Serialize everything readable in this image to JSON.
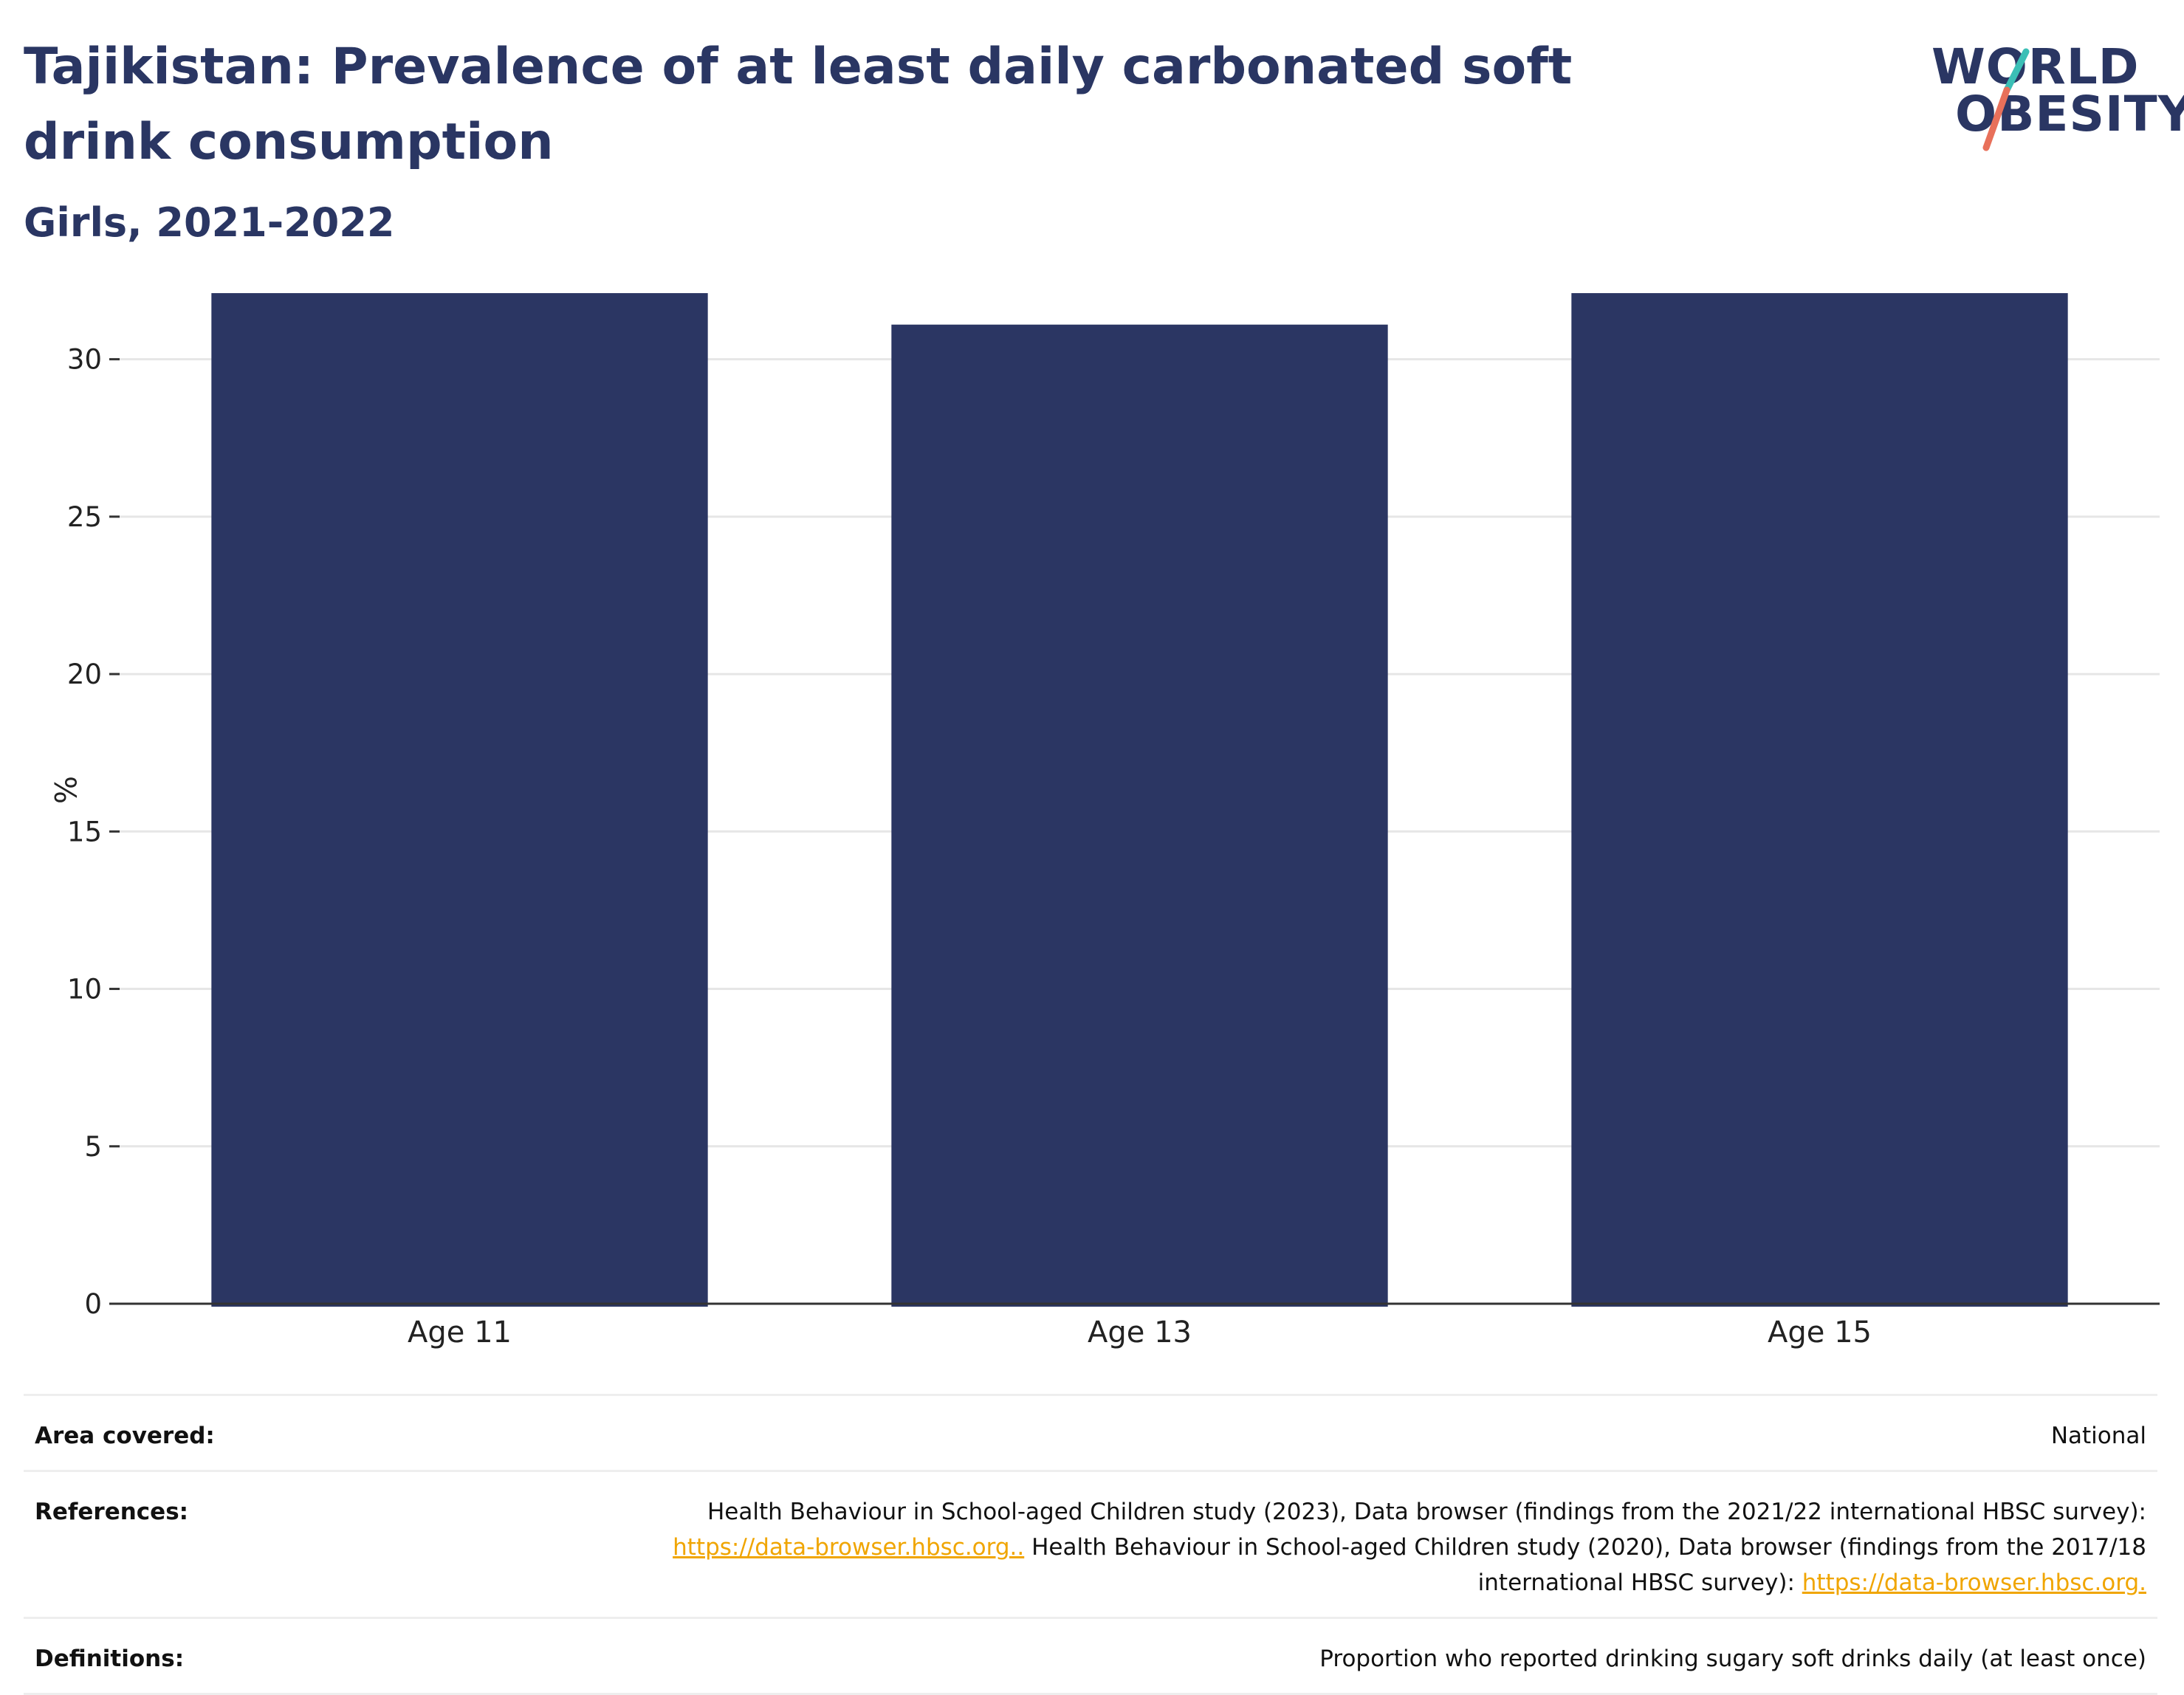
{
  "header": {
    "title": "Tajikistan: Prevalence of at least daily carbonated soft drink consumption",
    "subtitle": "Girls, 2021-2022"
  },
  "logo": {
    "line1": "WORLD",
    "line2": "OBESITY",
    "accent_colors": [
      "#3bbfb6",
      "#e8705a"
    ]
  },
  "chart_data": {
    "type": "bar",
    "categories": [
      "Age 11",
      "Age 13",
      "Age 15"
    ],
    "values": [
      32.1,
      31.1,
      32.1
    ],
    "ylabel": "%",
    "ylim": [
      0,
      32.5
    ],
    "yticks": [
      0,
      5,
      10,
      15,
      20,
      25,
      30
    ],
    "grid": true,
    "bar_color": "#2b3663"
  },
  "info": {
    "area": {
      "label": "Area covered:",
      "value": "National"
    },
    "references": {
      "label": "References:",
      "text1": "Health Behaviour in School-aged Children study (2023), Data browser (findings from the 2021/22 international HBSC survey):",
      "link1": "https://data-browser.hbsc.org..",
      "text2": " Health Behaviour in School-aged Children study (2020), Data browser (findings from the 2017/18 international HBSC survey): ",
      "link2": "https://data-browser.hbsc.org."
    },
    "definitions": {
      "label": "Definitions:",
      "value": "Proportion who reported drinking sugary soft drinks daily (at least once)"
    }
  }
}
